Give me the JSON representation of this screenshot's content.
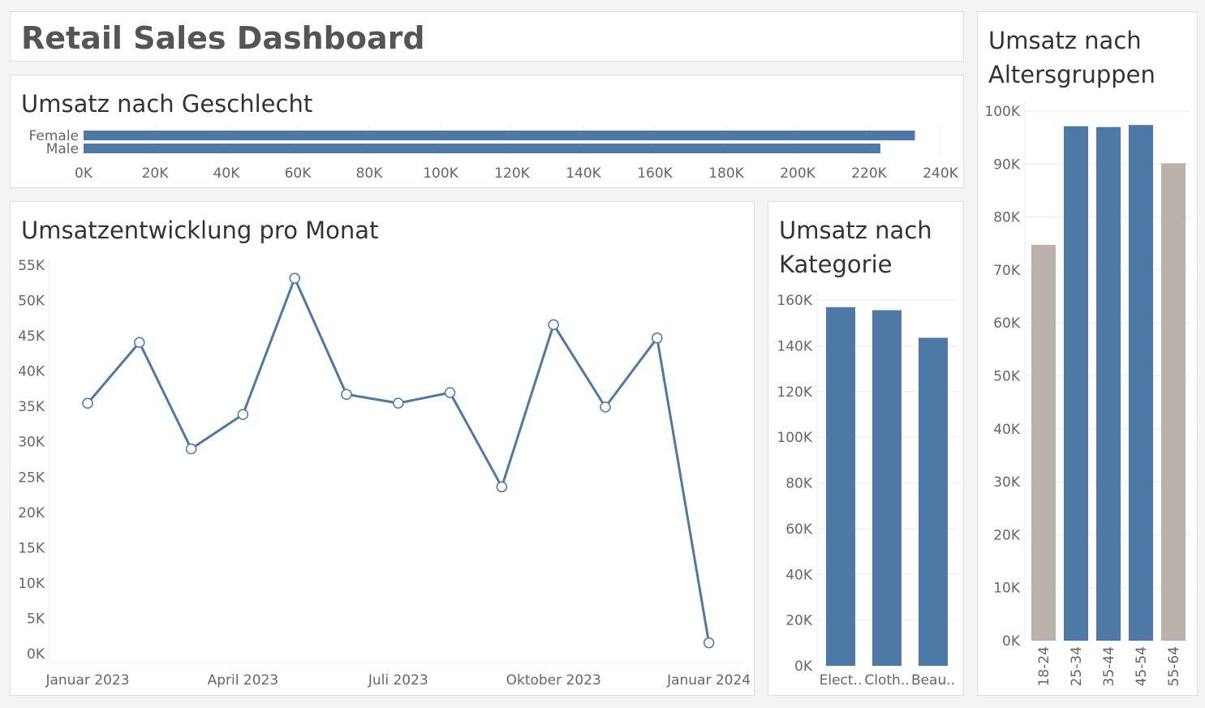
{
  "dashboard": {
    "title": "Retail Sales Dashboard"
  },
  "colors": {
    "primary": "#4e79a7",
    "muted": "#bab0ac",
    "axis_text": "#666666",
    "grid": "#ececec"
  },
  "chart_data": [
    {
      "id": "gender",
      "type": "bar",
      "orientation": "horizontal",
      "title": "Umsatz nach Geschlecht",
      "categories": [
        "Female",
        "Male"
      ],
      "values": [
        232840,
        223160
      ],
      "xlim": [
        0,
        240000
      ],
      "ticks": [
        0,
        20000,
        40000,
        60000,
        80000,
        100000,
        120000,
        140000,
        160000,
        180000,
        200000,
        220000,
        240000
      ],
      "tick_labels": [
        "0K",
        "20K",
        "40K",
        "60K",
        "80K",
        "100K",
        "120K",
        "140K",
        "160K",
        "180K",
        "200K",
        "220K",
        "240K"
      ],
      "grid": true
    },
    {
      "id": "monthly",
      "type": "line",
      "title": "Umsatzentwicklung pro Monat",
      "x": [
        "2023-01",
        "2023-02",
        "2023-03",
        "2023-04",
        "2023-05",
        "2023-06",
        "2023-07",
        "2023-08",
        "2023-09",
        "2023-10",
        "2023-11",
        "2023-12",
        "2024-01"
      ],
      "values": [
        35450,
        44060,
        28990,
        33870,
        53150,
        36715,
        35465,
        36960,
        23620,
        46580,
        34920,
        44690,
        1530
      ],
      "ylim": [
        0,
        55000
      ],
      "y_ticks": [
        0,
        5000,
        10000,
        15000,
        20000,
        25000,
        30000,
        35000,
        40000,
        45000,
        50000,
        55000
      ],
      "y_tick_labels": [
        "0K",
        "5K",
        "10K",
        "15K",
        "20K",
        "25K",
        "30K",
        "35K",
        "40K",
        "45K",
        "50K",
        "55K"
      ],
      "x_tick_labels": [
        {
          "x": "2023-01",
          "label": "Januar 2023"
        },
        {
          "x": "2023-04",
          "label": "April 2023"
        },
        {
          "x": "2023-07",
          "label": "Juli 2023"
        },
        {
          "x": "2023-10",
          "label": "Oktober 2023"
        },
        {
          "x": "2024-01",
          "label": "Januar 2024"
        }
      ],
      "grid": false
    },
    {
      "id": "category",
      "type": "bar",
      "title": "Umsatz nach Kategorie",
      "categories": [
        "Electronics",
        "Clothing",
        "Beauty"
      ],
      "tick_labels": [
        "Elect..",
        "Cloth..",
        "Beau.."
      ],
      "values": [
        156905,
        155580,
        143515
      ],
      "ylim": [
        0,
        160000
      ],
      "y_ticks": [
        0,
        20000,
        40000,
        60000,
        80000,
        100000,
        120000,
        140000,
        160000
      ],
      "y_tick_labels": [
        "0K",
        "20K",
        "40K",
        "60K",
        "80K",
        "100K",
        "120K",
        "140K",
        "160K"
      ],
      "grid": true
    },
    {
      "id": "age",
      "type": "bar",
      "title": "Umsatz nach Altersgruppen",
      "categories": [
        "18-24",
        "25-34",
        "35-44",
        "45-54",
        "55-64"
      ],
      "values": [
        74750,
        97150,
        96990,
        97380,
        90150
      ],
      "highlight": [
        false,
        true,
        true,
        true,
        false
      ],
      "ylim": [
        0,
        100000
      ],
      "y_ticks": [
        0,
        10000,
        20000,
        30000,
        40000,
        50000,
        60000,
        70000,
        80000,
        90000,
        100000
      ],
      "y_tick_labels": [
        "0K",
        "10K",
        "20K",
        "30K",
        "40K",
        "50K",
        "60K",
        "70K",
        "80K",
        "90K",
        "100K"
      ],
      "grid": true
    }
  ]
}
